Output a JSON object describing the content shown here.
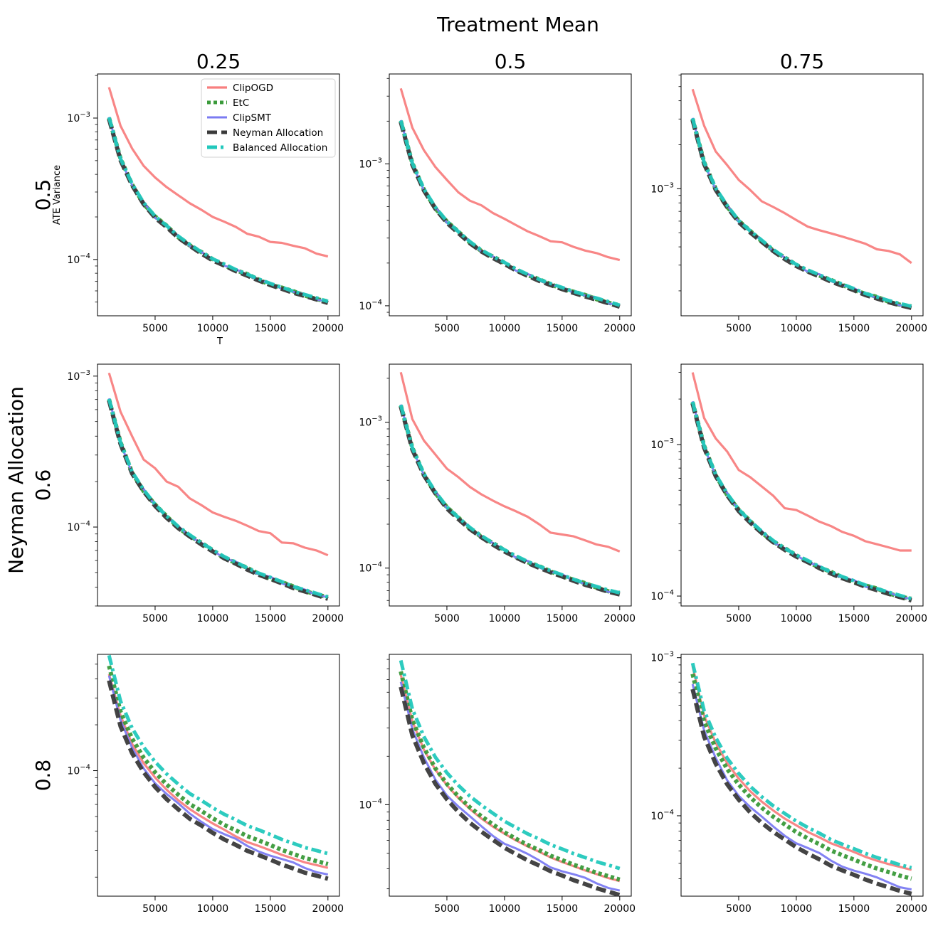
{
  "figure": {
    "suptitle": "Treatment Mean",
    "ylabel_group": "Neyman Allocation"
  },
  "chart_data": {
    "type": "line",
    "yscale": "log",
    "x": [
      1000,
      2000,
      3000,
      4000,
      5000,
      6000,
      7000,
      8000,
      9000,
      10000,
      11000,
      12000,
      13000,
      14000,
      15000,
      16000,
      17000,
      18000,
      19000,
      20000
    ],
    "xticks": [
      5000,
      10000,
      15000,
      20000
    ],
    "xticklabels": [
      "5000",
      "10000",
      "15000",
      "20000"
    ],
    "xlim": [
      0,
      21000
    ],
    "xlabel": "T",
    "ylabel": "ATE Variance",
    "column_titles": [
      "0.25",
      "0.5",
      "0.75"
    ],
    "row_labels": [
      "0.5",
      "0.6",
      "0.8"
    ],
    "legend": {
      "location": "top-right",
      "entries": [
        "ClipOGD",
        "EtC",
        "ClipSMT",
        "Neyman Allocation",
        "Balanced Allocation"
      ]
    },
    "series_styles": [
      {
        "name": "ClipOGD",
        "color": "#f87f7f",
        "style": "solid"
      },
      {
        "name": "EtC",
        "color": "#3a9a3a",
        "style": "dotted"
      },
      {
        "name": "ClipSMT",
        "color": "#7b7bf2",
        "style": "solid"
      },
      {
        "name": "Neyman Allocation",
        "color": "#3a3a3a",
        "style": "dashed"
      },
      {
        "name": "Balanced Allocation",
        "color": "#22c8bc",
        "style": "dashdot"
      }
    ],
    "panels": [
      {
        "row": 0,
        "col": 0,
        "ylim": [
          4e-05,
          0.00205
        ],
        "yticks": [
          0.0001,
          0.001
        ],
        "yticklabels": [
          "10^-4",
          "10^-3"
        ],
        "base": [
          0.001,
          0.00051,
          0.00034,
          0.00025,
          0.0002,
          0.000172,
          0.000145,
          0.000127,
          0.000112,
          0.0001,
          9.2e-05,
          8.4e-05,
          7.8e-05,
          7.2e-05,
          6.7e-05,
          6.3e-05,
          5.9e-05,
          5.6e-05,
          5.3e-05,
          5e-05
        ],
        "ogd": [
          0.00165,
          0.00088,
          0.00061,
          0.00046,
          0.00038,
          0.000325,
          0.000285,
          0.00025,
          0.000225,
          0.0002,
          0.000185,
          0.00017,
          0.000152,
          0.000145,
          0.000133,
          0.000131,
          0.000125,
          0.00012,
          0.00011,
          0.000105
        ]
      },
      {
        "row": 0,
        "col": 1,
        "ylim": [
          8.5e-05,
          0.0043
        ],
        "yticks": [
          0.0001,
          0.001
        ],
        "yticklabels": [
          "10^-4",
          "10^-3"
        ],
        "base": [
          0.002,
          0.001,
          0.00066,
          0.00049,
          0.00039,
          0.00033,
          0.00028,
          0.000245,
          0.00022,
          0.0002,
          0.00018,
          0.000165,
          0.000152,
          0.000142,
          0.000133,
          0.000125,
          0.000118,
          0.000112,
          0.000106,
          0.0001
        ],
        "ogd": [
          0.0034,
          0.0018,
          0.00125,
          0.00095,
          0.00077,
          0.00063,
          0.00055,
          0.00051,
          0.00045,
          0.00041,
          0.00037,
          0.000335,
          0.00031,
          0.000285,
          0.00028,
          0.00026,
          0.000245,
          0.000235,
          0.00022,
          0.00021
        ]
      },
      {
        "row": 0,
        "col": 2,
        "ylim": [
          0.000135,
          0.0061
        ],
        "yticks": [
          0.001
        ],
        "yticklabels": [
          "10^-3"
        ],
        "base": [
          0.003,
          0.0015,
          0.001,
          0.00076,
          0.0006,
          0.00051,
          0.00044,
          0.00038,
          0.000335,
          0.0003,
          0.000275,
          0.000255,
          0.000235,
          0.00022,
          0.000205,
          0.00019,
          0.00018,
          0.00017,
          0.000162,
          0.000155
        ],
        "ogd": [
          0.0048,
          0.0027,
          0.0018,
          0.00145,
          0.00115,
          0.00098,
          0.00082,
          0.00075,
          0.00068,
          0.00061,
          0.00055,
          0.00052,
          0.000495,
          0.00047,
          0.000445,
          0.00042,
          0.000385,
          0.000375,
          0.000355,
          0.00031
        ]
      },
      {
        "row": 1,
        "col": 0,
        "ylim": [
          3e-05,
          0.0012
        ],
        "yticks": [
          0.0001,
          0.001
        ],
        "yticklabels": [
          "10^-4",
          "10^-3"
        ],
        "base": [
          0.0007,
          0.00036,
          0.00023,
          0.000175,
          0.00014,
          0.000117,
          0.0001,
          8.8e-05,
          7.8e-05,
          7e-05,
          6.3e-05,
          5.8e-05,
          5.3e-05,
          4.9e-05,
          4.6e-05,
          4.3e-05,
          4e-05,
          3.8e-05,
          3.6e-05,
          3.4e-05
        ],
        "ogd": [
          0.00105,
          0.00058,
          0.0004,
          0.00028,
          0.000245,
          0.0002,
          0.000185,
          0.000155,
          0.00014,
          0.000125,
          0.000117,
          0.00011,
          0.000102,
          9.4e-05,
          9.1e-05,
          7.9e-05,
          7.8e-05,
          7.3e-05,
          7e-05,
          6.5e-05
        ]
      },
      {
        "row": 1,
        "col": 1,
        "ylim": [
          5.5e-05,
          0.0025
        ],
        "yticks": [
          0.0001,
          0.001
        ],
        "yticklabels": [
          "10^-4",
          "10^-3"
        ],
        "base": [
          0.0013,
          0.00066,
          0.00044,
          0.00033,
          0.00026,
          0.00022,
          0.000188,
          0.000165,
          0.000147,
          0.000132,
          0.00012,
          0.00011,
          0.000102,
          9.5e-05,
          8.9e-05,
          8.3e-05,
          7.8e-05,
          7.4e-05,
          7e-05,
          6.7e-05
        ],
        "ogd": [
          0.0022,
          0.00105,
          0.00075,
          0.0006,
          0.00048,
          0.00042,
          0.00036,
          0.00032,
          0.00029,
          0.000265,
          0.000245,
          0.000225,
          0.0002,
          0.000175,
          0.00017,
          0.000165,
          0.000155,
          0.000145,
          0.00014,
          0.00013
        ]
      },
      {
        "row": 1,
        "col": 2,
        "ylim": [
          8.6e-05,
          0.0034
        ],
        "yticks": [
          0.0001,
          0.001
        ],
        "yticklabels": [
          "10^-4",
          "10^-3"
        ],
        "base": [
          0.0019,
          0.00097,
          0.00063,
          0.00047,
          0.00037,
          0.00031,
          0.000265,
          0.00023,
          0.000205,
          0.000185,
          0.00017,
          0.000155,
          0.000143,
          0.000133,
          0.000125,
          0.000117,
          0.000111,
          0.000105,
          0.0001,
          9.5e-05
        ],
        "ogd": [
          0.003,
          0.0015,
          0.0011,
          0.0009,
          0.00068,
          0.00061,
          0.00053,
          0.00046,
          0.00038,
          0.00037,
          0.00034,
          0.00031,
          0.00029,
          0.000265,
          0.00025,
          0.00023,
          0.00022,
          0.00021,
          0.0002,
          0.0002
        ]
      },
      {
        "row": 2,
        "col": 0,
        "ylim": [
          1.5e-05,
          0.00058
        ],
        "yticks": [
          0.0001
        ],
        "yticklabels": [
          "10^-4"
        ],
        "base": [
          0.00042,
          0.00021,
          0.00014,
          0.000105,
          8.4e-05,
          7e-05,
          6e-05,
          5.2e-05,
          4.7e-05,
          4.2e-05,
          3.8e-05,
          3.5e-05,
          3.2e-05,
          3e-05,
          2.8e-05,
          2.6e-05,
          2.45e-05,
          2.3e-05,
          2.2e-05,
          2.1e-05
        ],
        "ogd": [
          0.00043,
          0.00023,
          0.00015,
          0.000112,
          9e-05,
          7.5e-05,
          6.4e-05,
          5.6e-05,
          5e-05,
          4.5e-05,
          4.1e-05,
          3.7e-05,
          3.4e-05,
          3.2e-05,
          3e-05,
          2.8e-05,
          2.65e-05,
          2.5e-05,
          2.4e-05,
          2.3e-05
        ]
      },
      {
        "row": 2,
        "col": 1,
        "ylim": [
          2.7e-05,
          0.00086
        ],
        "yticks": [
          0.0001
        ],
        "yticklabels": [
          "10^-4"
        ],
        "base": [
          0.00058,
          0.00029,
          0.000195,
          0.000145,
          0.000116,
          9.7e-05,
          8.3e-05,
          7.3e-05,
          6.5e-05,
          5.8e-05,
          5.3e-05,
          4.85e-05,
          4.5e-05,
          4.15e-05,
          3.9e-05,
          3.65e-05,
          3.45e-05,
          3.25e-05,
          3.1e-05,
          2.95e-05
        ],
        "ogd": [
          0.00064,
          0.00033,
          0.00022,
          0.000165,
          0.000132,
          0.00011,
          9.4e-05,
          8.2e-05,
          7.3e-05,
          6.6e-05,
          6e-05,
          5.5e-05,
          5.1e-05,
          4.7e-05,
          4.4e-05,
          4.15e-05,
          3.9e-05,
          3.7e-05,
          3.5e-05,
          3.35e-05
        ]
      },
      {
        "row": 2,
        "col": 2,
        "ylim": [
          3.1e-05,
          0.00105
        ],
        "yticks": [
          0.0001,
          0.001
        ],
        "yticklabels": [
          "10^-4",
          "10^-3"
        ],
        "base": [
          0.00068,
          0.00034,
          0.00023,
          0.00017,
          0.000136,
          0.000113,
          9.7e-05,
          8.5e-05,
          7.6e-05,
          6.8e-05,
          6.2e-05,
          5.7e-05,
          5.2e-05,
          4.85e-05,
          4.55e-05,
          4.25e-05,
          4e-05,
          3.8e-05,
          3.6e-05,
          3.45e-05
        ],
        "ogd": [
          0.00088,
          0.00043,
          0.00029,
          0.000215,
          0.000172,
          0.000143,
          0.000123,
          0.000108,
          9.6e-05,
          8.7e-05,
          7.9e-05,
          7.3e-05,
          6.7e-05,
          6.3e-05,
          5.9e-05,
          5.5e-05,
          5.2e-05,
          4.95e-05,
          4.75e-05,
          4.55e-05
        ]
      }
    ]
  }
}
